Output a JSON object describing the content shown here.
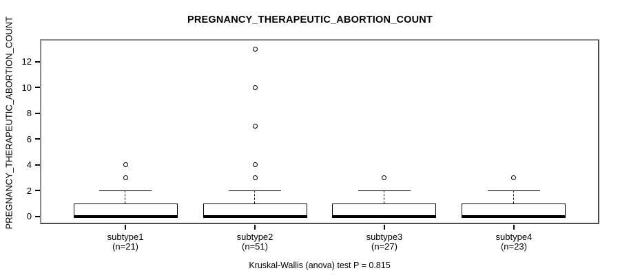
{
  "figure": {
    "title": "PREGNANCY_THERAPEUTIC_ABORTION_COUNT",
    "y_axis_label": "PREGNANCY_THERAPEUTIC_ABORTION_COUNT",
    "caption": "Kruskal-Wallis (anova) test P = 0.815"
  },
  "chart_data": {
    "type": "boxplot",
    "title": "PREGNANCY_THERAPEUTIC_ABORTION_COUNT",
    "xlabel": "",
    "ylabel": "PREGNANCY_THERAPEUTIC_ABORTION_COUNT",
    "stat_annotation": "Kruskal-Wallis (anova) test P = 0.815",
    "yticks": [
      0,
      2,
      4,
      6,
      8,
      10,
      12
    ],
    "ylim": [
      -0.59,
      13.76
    ],
    "xlim": [
      0.34,
      4.66
    ],
    "grid": false,
    "legend": null,
    "groups": [
      {
        "label": "subtype1",
        "n": 21,
        "n_label": "(n=21)",
        "whisker_low": 0,
        "q1": 0,
        "median": 0,
        "q3": 1,
        "whisker_high": 2,
        "outliers": [
          3,
          4
        ]
      },
      {
        "label": "subtype2",
        "n": 51,
        "n_label": "(n=51)",
        "whisker_low": 0,
        "q1": 0,
        "median": 0,
        "q3": 1,
        "whisker_high": 2,
        "outliers": [
          3,
          4,
          7,
          10,
          13
        ]
      },
      {
        "label": "subtype3",
        "n": 27,
        "n_label": "(n=27)",
        "whisker_low": 0,
        "q1": 0,
        "median": 0,
        "q3": 1,
        "whisker_high": 2,
        "outliers": [
          3
        ]
      },
      {
        "label": "subtype4",
        "n": 23,
        "n_label": "(n=23)",
        "whisker_low": 0,
        "q1": 0,
        "median": 0,
        "q3": 1,
        "whisker_high": 2,
        "outliers": [
          3
        ]
      }
    ]
  }
}
